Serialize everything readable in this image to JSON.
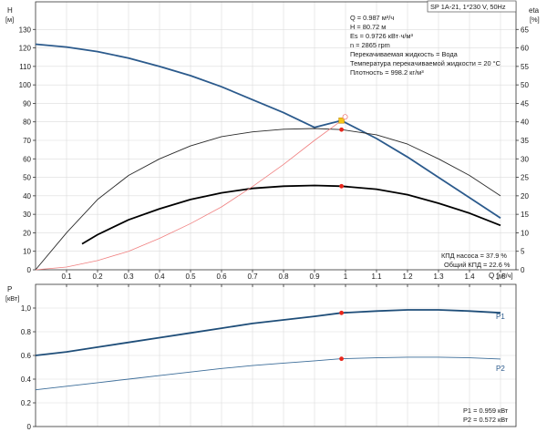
{
  "header": {
    "model_label": "SP 1A-21, 1*230 V, 50Hz"
  },
  "info_lines": [
    "Q = 0.987 м³/ч",
    "H = 80.72 м",
    "Es = 0.9726 кВт·ч/м³",
    "n = 2865 rpm",
    "Перекачиваемая жидкость = Вода",
    "Температура перекачиваемой жидкости = 20 °C",
    "Плотность = 998.2 кг/м³"
  ],
  "efficiency_lines": [
    "КПД насоса = 37.9 %",
    "Общий КПД = 22.6 %"
  ],
  "power_lines": [
    "P1 = 0.959 кВт",
    "P2 = 0.572 кВт"
  ],
  "colors": {
    "head_curve": "#2b5a8c",
    "pump_eff_curve": "#2a2a2a",
    "total_eff_curve": "#000000",
    "system_curve": "#f08080",
    "p1_curve": "#1f4e79",
    "p2_curve": "#3c6d99",
    "duty_point": "#e8261b",
    "duty_marker": "#f5c518"
  },
  "chart_data": [
    {
      "type": "line",
      "name": "upper",
      "y_title_left": "H",
      "y_unit_left": "[м]",
      "y_title_right": "eta",
      "y_unit_right": "[%]",
      "x_title": "Q",
      "x_unit": "[м³/ч]",
      "xlim": [
        0,
        1.55
      ],
      "ylim_left": [
        0,
        140
      ],
      "ylim_right": [
        0,
        70
      ],
      "x_ticks": [
        "0.1",
        "0.2",
        "0.3",
        "0.4",
        "0.5",
        "0.6",
        "0.7",
        "0.8",
        "0.9",
        "1",
        "1.1",
        "1.2",
        "1.3",
        "1.4",
        "1.5"
      ],
      "y_ticks_left": [
        "0",
        "10",
        "20",
        "30",
        "40",
        "50",
        "60",
        "70",
        "80",
        "90",
        "100",
        "110",
        "120",
        "130"
      ],
      "y_ticks_right": [
        "0",
        "5",
        "10",
        "15",
        "20",
        "25",
        "30",
        "35",
        "40",
        "45",
        "50",
        "55",
        "60",
        "65"
      ],
      "grid": true,
      "series": [
        {
          "key": "head",
          "axis": "left",
          "x": [
            0,
            0.1,
            0.2,
            0.3,
            0.4,
            0.5,
            0.6,
            0.7,
            0.8,
            0.9,
            0.987,
            1.1,
            1.2,
            1.3,
            1.4,
            1.5
          ],
          "y": [
            122,
            120.5,
            118,
            114.5,
            110,
            105,
            99,
            92,
            85,
            77,
            80.7,
            71,
            61,
            50,
            39,
            28
          ]
        },
        {
          "key": "pump_eff",
          "axis": "right",
          "x": [
            0,
            0.1,
            0.2,
            0.3,
            0.4,
            0.5,
            0.6,
            0.7,
            0.8,
            0.9,
            0.987,
            1.1,
            1.2,
            1.3,
            1.4,
            1.5
          ],
          "y": [
            0,
            10,
            19,
            25.5,
            30,
            33.5,
            36,
            37.3,
            38,
            38.2,
            37.9,
            36.5,
            34,
            30,
            25.5,
            20
          ]
        },
        {
          "key": "total_eff",
          "axis": "right",
          "x": [
            0.15,
            0.2,
            0.3,
            0.4,
            0.5,
            0.6,
            0.7,
            0.8,
            0.9,
            0.987,
            1.1,
            1.2,
            1.3,
            1.4,
            1.5
          ],
          "y": [
            7,
            9.5,
            13.5,
            16.5,
            19,
            20.8,
            22,
            22.6,
            22.8,
            22.6,
            21.8,
            20.3,
            18,
            15.3,
            12
          ]
        },
        {
          "key": "system",
          "axis": "left",
          "x": [
            0,
            0.1,
            0.2,
            0.3,
            0.4,
            0.5,
            0.6,
            0.7,
            0.8,
            0.9,
            0.987
          ],
          "y": [
            0,
            1.5,
            5,
            10,
            17,
            25,
            34,
            45,
            57,
            70,
            80.7
          ]
        }
      ],
      "duty_points": [
        {
          "x": 0.987,
          "y": 80.72,
          "axis": "left"
        },
        {
          "x": 0.987,
          "y": 37.9,
          "axis": "right"
        },
        {
          "x": 0.987,
          "y": 22.6,
          "axis": "right"
        }
      ]
    },
    {
      "type": "line",
      "name": "lower",
      "y_title_left": "P",
      "y_unit_left": "[кВт]",
      "xlim": [
        0,
        1.55
      ],
      "ylim_left": [
        0,
        1.2
      ],
      "y_ticks_left": [
        "0",
        "0.2",
        "0.4",
        "0.6",
        "0.8",
        "1,0"
      ],
      "grid": true,
      "series": [
        {
          "key": "p1",
          "label": "P1",
          "x": [
            0,
            0.1,
            0.2,
            0.3,
            0.4,
            0.5,
            0.6,
            0.7,
            0.8,
            0.9,
            0.987,
            1.1,
            1.2,
            1.3,
            1.4,
            1.5
          ],
          "y": [
            0.6,
            0.63,
            0.67,
            0.71,
            0.75,
            0.79,
            0.83,
            0.87,
            0.9,
            0.93,
            0.959,
            0.975,
            0.985,
            0.985,
            0.975,
            0.96
          ]
        },
        {
          "key": "p2",
          "label": "P2",
          "x": [
            0,
            0.1,
            0.2,
            0.3,
            0.4,
            0.5,
            0.6,
            0.7,
            0.8,
            0.9,
            0.987,
            1.1,
            1.2,
            1.3,
            1.4,
            1.5
          ],
          "y": [
            0.31,
            0.34,
            0.37,
            0.4,
            0.43,
            0.46,
            0.49,
            0.515,
            0.535,
            0.555,
            0.572,
            0.58,
            0.585,
            0.585,
            0.58,
            0.57
          ]
        }
      ],
      "duty_points": [
        {
          "x": 0.987,
          "y": 0.959
        },
        {
          "x": 0.987,
          "y": 0.572
        }
      ]
    }
  ]
}
